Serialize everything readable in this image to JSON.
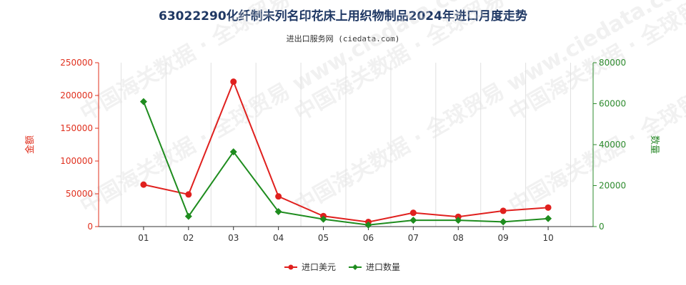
{
  "title": "63022290化纤制未列名印花床上用织物制品2024年进口月度走势",
  "subtitle": "进出口服务网 (ciedata.com)",
  "watermark": "中国海关数据 · 全球贸易 www.ciedata.com",
  "colors": {
    "amount": "#e0201e",
    "quantity": "#1e8c1e",
    "title": "#1f3864"
  },
  "chart_data": {
    "type": "line",
    "categories": [
      "01",
      "02",
      "03",
      "04",
      "05",
      "06",
      "07",
      "08",
      "09",
      "10"
    ],
    "ylabel_left": "金额",
    "ylabel_right": "数量",
    "ylim_left": [
      0,
      250000
    ],
    "ylim_right": [
      0,
      80000
    ],
    "yticks_left": [
      "0",
      "50000",
      "100000",
      "150000",
      "200000",
      "250000"
    ],
    "yticks_right": [
      "0",
      "20000",
      "40000",
      "60000",
      "80000"
    ],
    "series": [
      {
        "name": "进口美元",
        "axis": "left",
        "marker": "circle",
        "values": [
          64000,
          49000,
          221000,
          46000,
          16000,
          7000,
          21000,
          15000,
          24000,
          29000
        ]
      },
      {
        "name": "进口数量",
        "axis": "right",
        "marker": "diamond",
        "values": [
          61000,
          5000,
          36500,
          7300,
          3600,
          800,
          3100,
          3100,
          2300,
          3900
        ]
      }
    ],
    "grid": "vertical",
    "legend": "bottom-center"
  }
}
